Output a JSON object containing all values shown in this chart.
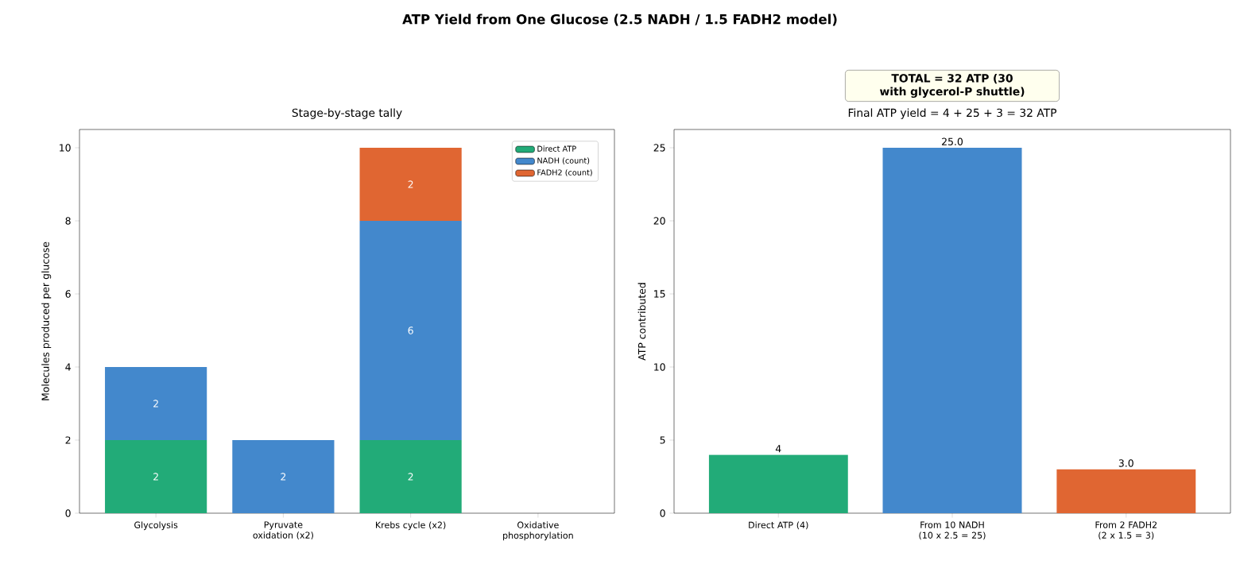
{
  "chart_data": [
    {
      "type": "bar",
      "title": "Stage-by-stage tally",
      "stacked": true,
      "annotations": [
        "ATP Yield from One Glucose (2.5 NADH / 1.5 FADH2 model)"
      ],
      "categories": [
        "Glycolysis",
        "Pyruvate oxidation (x2)",
        "Krebs cycle (x2)",
        "Oxidative phosphorylation"
      ],
      "ylabel": "Molecules produced per glucose",
      "ylim": [
        0,
        10.5
      ],
      "yticks": [
        0,
        2,
        4,
        6,
        8,
        10
      ],
      "legend": "top right",
      "series": [
        {
          "name": "Direct ATP",
          "color": "#22ab78",
          "values": [
            2,
            0,
            2,
            0
          ],
          "value_labels": [
            "2",
            null,
            "2",
            null
          ]
        },
        {
          "name": "NADH (count)",
          "color": "#4388cc",
          "values": [
            2,
            2,
            6,
            0
          ],
          "value_labels": [
            "2",
            "2",
            "6",
            null
          ]
        },
        {
          "name": "FADH2 (count)",
          "color": "#e06632",
          "values": [
            0,
            0,
            2,
            0
          ],
          "value_labels": [
            null,
            null,
            "2",
            null
          ]
        }
      ]
    },
    {
      "type": "bar",
      "title": "Final ATP yield = 4 + 25 + 3 = 32 ATP",
      "annotations": [
        "TOTAL = 32 ATP (30 with glycerol-P shuttle)"
      ],
      "categories": [
        "Direct ATP (4)",
        "From 10 NADH (10 x 2.5 = 25)",
        "From 2 FADH2 (2 x 1.5 = 3)"
      ],
      "ylabel": "ATP contributed",
      "ylim": [
        0,
        26.25
      ],
      "yticks": [
        0,
        5,
        10,
        15,
        20,
        25
      ],
      "values": [
        4,
        25,
        3
      ],
      "colors": [
        "#22ab78",
        "#4388cc",
        "#e06632"
      ],
      "value_labels": [
        "4",
        "25.0",
        "3.0"
      ]
    }
  ]
}
